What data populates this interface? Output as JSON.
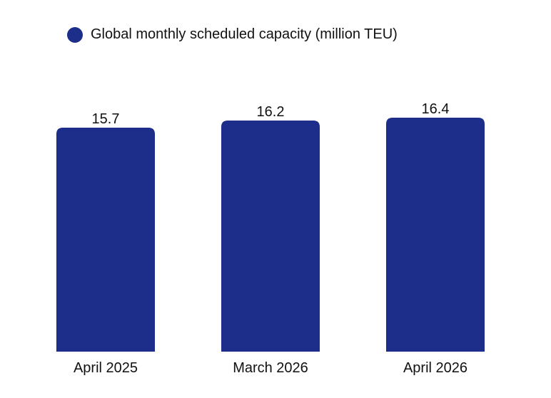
{
  "chart_data": {
    "type": "bar",
    "categories": [
      "April 2025",
      "March 2026",
      "April 2026"
    ],
    "series": [
      {
        "name": "Global monthly scheduled capacity (million TEU)",
        "values": [
          15.7,
          16.2,
          16.4
        ]
      }
    ],
    "data_labels": [
      "15.7",
      "16.2",
      "16.4"
    ],
    "title": "",
    "xlabel": "",
    "ylabel": "",
    "ylim": [
      0,
      16.4
    ],
    "grid": false,
    "legend_placement": "top-left",
    "colors": {
      "bar": "#1c2d8a"
    }
  }
}
